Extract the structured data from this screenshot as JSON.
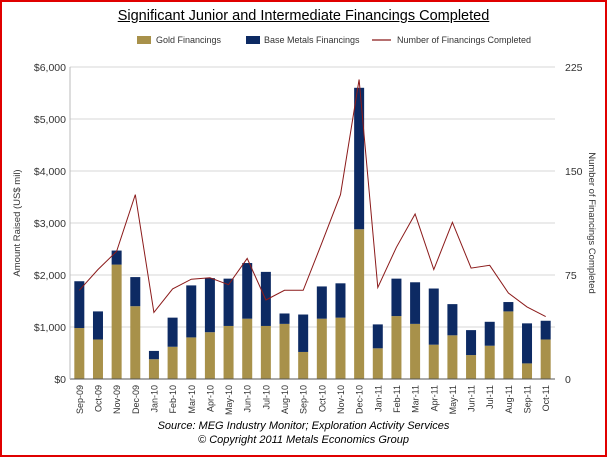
{
  "chart_data": {
    "type": "bar",
    "title": "Significant Junior and Intermediate Financings Completed",
    "ylabel": "Amount Raised (US$ mil)",
    "y2label": "Number of Financings Completed",
    "ylim": [
      0,
      6000
    ],
    "y2lim": [
      0,
      225
    ],
    "yticks": [
      "$0",
      "$1,000",
      "$2,000",
      "$3,000",
      "$4,000",
      "$5,000",
      "$6,000"
    ],
    "y2ticks": [
      "0",
      "75",
      "150",
      "225"
    ],
    "categories": [
      "Sep-09",
      "Oct-09",
      "Nov-09",
      "Dec-09",
      "Jan-10",
      "Feb-10",
      "Mar-10",
      "Apr-10",
      "May-10",
      "Jun-10",
      "Jul-10",
      "Aug-10",
      "Sep-10",
      "Oct-10",
      "Nov-10",
      "Dec-10",
      "Jan-11",
      "Feb-11",
      "Mar-11",
      "Apr-11",
      "May-11",
      "Jun-11",
      "Jul-11",
      "Aug-11",
      "Sep-11",
      "Oct-11"
    ],
    "series": [
      {
        "name": "Gold Financings",
        "kind": "bar",
        "color": "#a8914a",
        "values": [
          980,
          760,
          2200,
          1400,
          380,
          620,
          800,
          900,
          1020,
          1160,
          1020,
          1060,
          520,
          1160,
          1180,
          2880,
          590,
          1210,
          1060,
          660,
          840,
          460,
          640,
          1300,
          300,
          760
        ]
      },
      {
        "name": "Base Metals Financings",
        "kind": "bar",
        "color": "#0d2a63",
        "values": [
          900,
          540,
          270,
          560,
          160,
          560,
          1000,
          1040,
          910,
          1070,
          1040,
          200,
          720,
          620,
          660,
          2720,
          460,
          720,
          800,
          1080,
          600,
          480,
          460,
          180,
          770,
          360
        ]
      },
      {
        "name": "Number of Financings Completed",
        "kind": "line",
        "color": "#8b1a1a",
        "values": [
          64,
          79,
          92,
          133,
          48,
          65,
          72,
          73,
          68,
          87,
          57,
          64,
          64,
          98,
          133,
          216,
          66,
          95,
          119,
          79,
          113,
          80,
          82,
          62,
          52,
          45
        ]
      }
    ],
    "legend": "top"
  },
  "footer": {
    "source": "Source: MEG Industry Monitor; Exploration Activity Services",
    "copyright": "© Copyright 2011 Metals Economics Group"
  }
}
